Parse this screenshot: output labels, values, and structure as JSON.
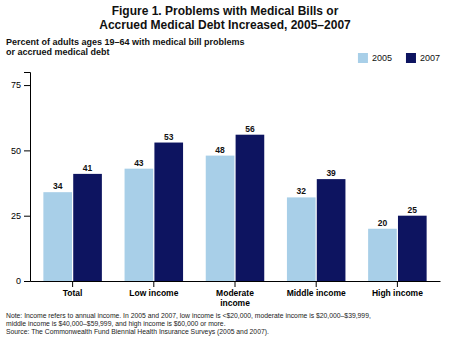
{
  "chart_data": {
    "type": "bar",
    "title": "Figure 1. Problems with Medical Bills or\nAccrued Medical Debt Increased, 2005–2007",
    "ylabel": "Percent of adults ages 19–64 with medical bill problems\nor accrued medical debt",
    "categories": [
      "Total",
      "Low income",
      "Moderate\nincome",
      "Middle income",
      "High income"
    ],
    "series": [
      {
        "name": "2005",
        "color": "#a8cfe8",
        "values": [
          34,
          43,
          48,
          32,
          20
        ]
      },
      {
        "name": "2007",
        "color": "#0d1460",
        "values": [
          41,
          53,
          56,
          39,
          25
        ]
      }
    ],
    "ylim": [
      0,
      80
    ],
    "yticks": [
      0,
      25,
      50,
      75
    ],
    "grid": false,
    "legend": "upper right",
    "data_labels": true,
    "annotations": [
      "Note:  Income refers to annual income. In 2005 and 2007, low income is <$20,000, moderate income is $20,000–$39,999,",
      "middle income is $40,000–$59,999, and high income is $60,000 or more.",
      "Source: The Commonwealth Fund Biennial Health Insurance Surveys (2005 and 2007)."
    ]
  }
}
